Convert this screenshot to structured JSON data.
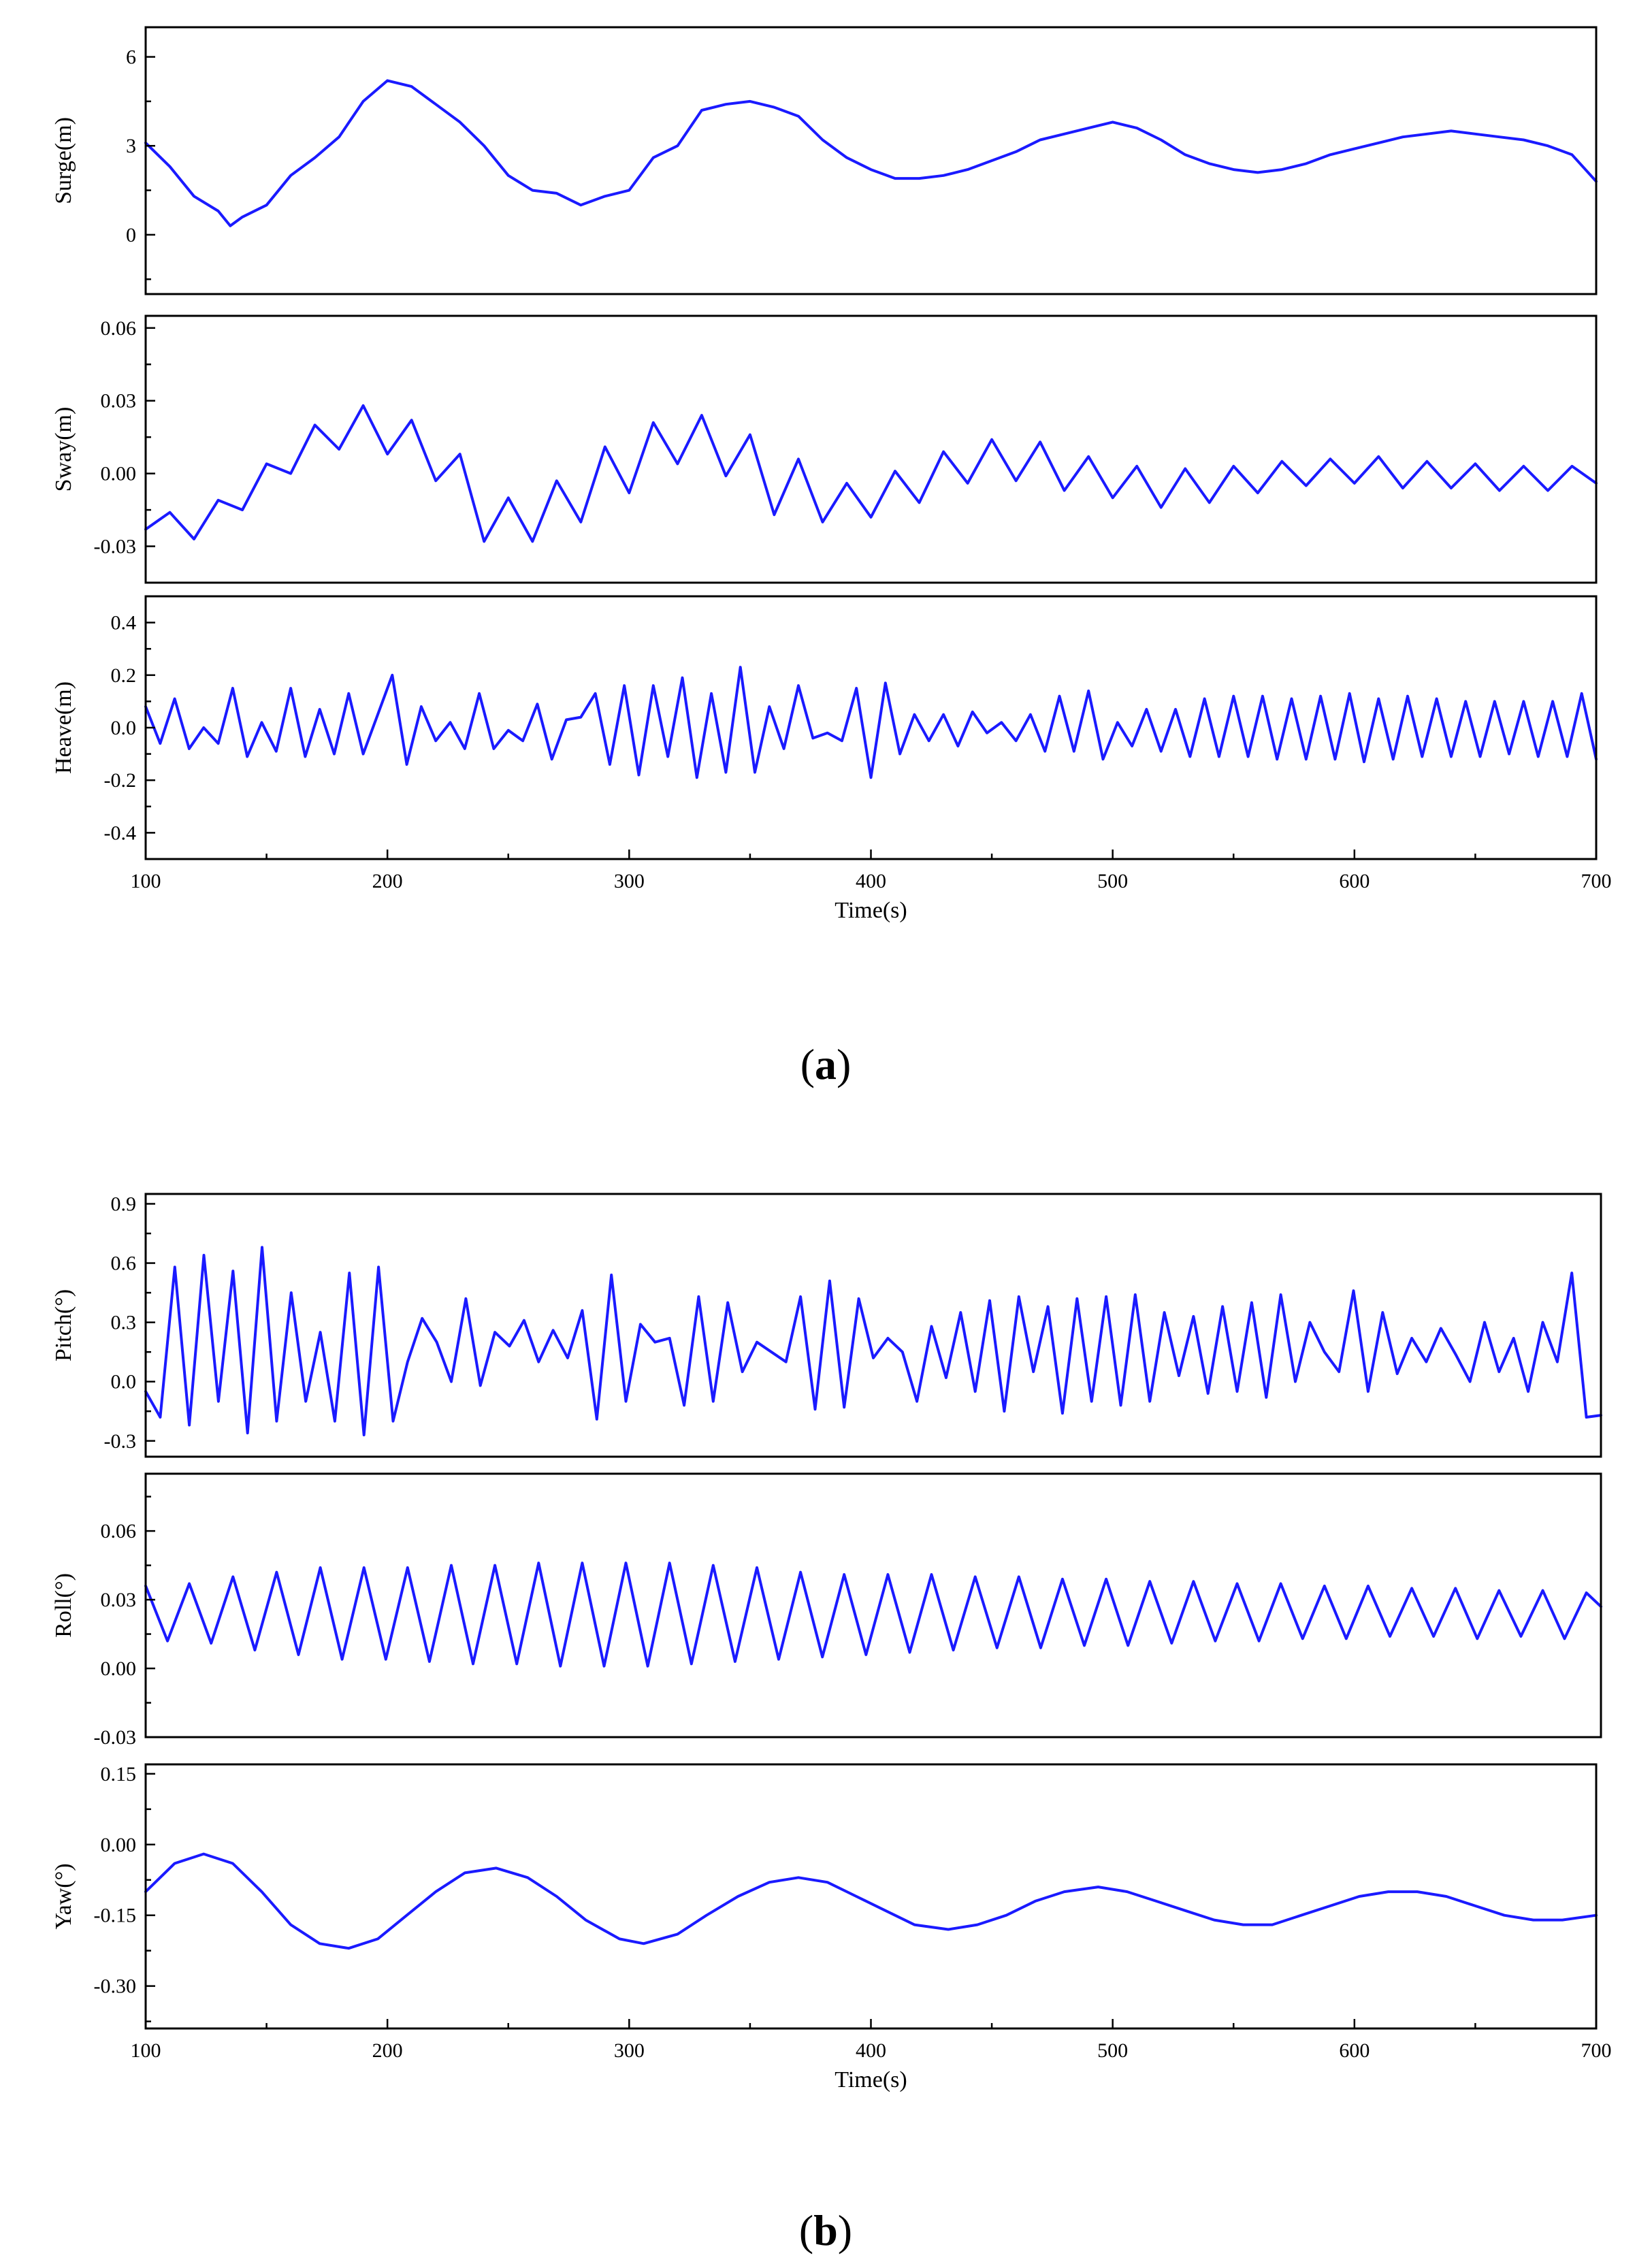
{
  "colors": {
    "line": "#1a1aff",
    "axis": "#000000"
  },
  "figure_labels": {
    "a": {
      "open": "(",
      "letter": "a",
      "close": ")"
    },
    "b": {
      "open": "(",
      "letter": "b",
      "close": ")"
    }
  },
  "chart_data": [
    {
      "type": "line",
      "panel": "a",
      "ylabel": "Surge(m)",
      "xlabel": "",
      "xlim": [
        100,
        700
      ],
      "ylim": [
        -2,
        7
      ],
      "yticks": [
        "6",
        "3",
        "0"
      ],
      "ytick_values": [
        6,
        3,
        0
      ],
      "xticks": [],
      "x": [
        100,
        110,
        120,
        130,
        135,
        140,
        150,
        160,
        170,
        180,
        190,
        200,
        210,
        220,
        230,
        240,
        250,
        260,
        270,
        280,
        290,
        300,
        310,
        320,
        330,
        340,
        350,
        360,
        370,
        380,
        390,
        400,
        410,
        420,
        430,
        440,
        450,
        460,
        470,
        480,
        490,
        500,
        510,
        520,
        530,
        540,
        550,
        560,
        570,
        580,
        590,
        600,
        610,
        620,
        630,
        640,
        650,
        660,
        670,
        680,
        690,
        700
      ],
      "values": [
        3.1,
        2.3,
        1.3,
        0.8,
        0.3,
        0.6,
        1.0,
        2.0,
        2.6,
        3.3,
        4.5,
        5.2,
        5.0,
        4.4,
        3.8,
        3.0,
        2.0,
        1.5,
        1.4,
        1.0,
        1.3,
        1.5,
        2.6,
        3.0,
        4.2,
        4.4,
        4.5,
        4.3,
        4.0,
        3.2,
        2.6,
        2.2,
        1.9,
        1.9,
        2.0,
        2.2,
        2.5,
        2.8,
        3.2,
        3.4,
        3.6,
        3.8,
        3.6,
        3.2,
        2.7,
        2.4,
        2.2,
        2.1,
        2.2,
        2.4,
        2.7,
        2.9,
        3.1,
        3.3,
        3.4,
        3.5,
        3.4,
        3.3,
        3.2,
        3.0,
        2.7,
        1.8
      ]
    },
    {
      "type": "line",
      "panel": "a",
      "ylabel": "Sway(m)",
      "xlabel": "",
      "xlim": [
        100,
        700
      ],
      "ylim": [
        -0.045,
        0.065
      ],
      "yticks": [
        "0.06",
        "0.03",
        "0.00",
        "-0.03"
      ],
      "ytick_values": [
        0.06,
        0.03,
        0.0,
        -0.03
      ],
      "xticks": [],
      "x": [
        100,
        110,
        120,
        130,
        140,
        150,
        160,
        170,
        180,
        190,
        200,
        210,
        220,
        230,
        240,
        250,
        260,
        270,
        280,
        290,
        300,
        310,
        320,
        330,
        340,
        350,
        360,
        370,
        380,
        390,
        400,
        410,
        420,
        430,
        440,
        450,
        460,
        470,
        480,
        490,
        500,
        510,
        520,
        530,
        540,
        550,
        560,
        570,
        580,
        590,
        600,
        610,
        620,
        630,
        640,
        650,
        660,
        670,
        680,
        690,
        700
      ],
      "values": [
        -0.023,
        -0.016,
        -0.027,
        -0.011,
        -0.015,
        0.004,
        0.0,
        0.02,
        0.01,
        0.028,
        0.008,
        0.022,
        -0.003,
        0.008,
        -0.028,
        -0.01,
        -0.028,
        -0.003,
        -0.02,
        0.011,
        -0.008,
        0.021,
        0.004,
        0.024,
        -0.001,
        0.016,
        -0.017,
        0.006,
        -0.02,
        -0.004,
        -0.018,
        0.001,
        -0.012,
        0.009,
        -0.004,
        0.014,
        -0.003,
        0.013,
        -0.007,
        0.007,
        -0.01,
        0.003,
        -0.014,
        0.002,
        -0.012,
        0.003,
        -0.008,
        0.005,
        -0.005,
        0.006,
        -0.004,
        0.007,
        -0.006,
        0.005,
        -0.006,
        0.004,
        -0.007,
        0.003,
        -0.007,
        0.003,
        -0.004
      ]
    },
    {
      "type": "line",
      "panel": "a",
      "ylabel": "Heave(m)",
      "xlabel": "Time(s)",
      "xlim": [
        100,
        700
      ],
      "ylim": [
        -0.5,
        0.5
      ],
      "yticks": [
        "0.4",
        "0.2",
        "0.0",
        "-0.2",
        "-0.4"
      ],
      "ytick_values": [
        0.4,
        0.2,
        0.0,
        -0.2,
        -0.4
      ],
      "xticks": [
        "100",
        "200",
        "300",
        "400",
        "500",
        "600",
        "700"
      ],
      "xtick_values": [
        100,
        200,
        300,
        400,
        500,
        600,
        700
      ],
      "x": [
        100,
        106,
        112,
        118,
        124,
        130,
        136,
        142,
        148,
        154,
        160,
        166,
        172,
        178,
        184,
        190,
        196,
        202,
        208,
        214,
        220,
        226,
        232,
        238,
        244,
        250,
        256,
        262,
        268,
        274,
        280,
        286,
        292,
        298,
        304,
        310,
        316,
        322,
        328,
        334,
        340,
        346,
        352,
        358,
        364,
        370,
        376,
        382,
        388,
        394,
        400,
        406,
        412,
        418,
        424,
        430,
        436,
        442,
        448,
        454,
        460,
        466,
        472,
        478,
        484,
        490,
        496,
        502,
        508,
        514,
        520,
        526,
        532,
        538,
        544,
        550,
        556,
        562,
        568,
        574,
        580,
        586,
        592,
        598,
        604,
        610,
        616,
        622,
        628,
        634,
        640,
        646,
        652,
        658,
        664,
        670,
        676,
        682,
        688,
        694,
        700
      ],
      "values": [
        0.08,
        -0.06,
        0.11,
        -0.08,
        0.0,
        -0.06,
        0.15,
        -0.11,
        0.02,
        -0.09,
        0.15,
        -0.11,
        0.07,
        -0.1,
        0.13,
        -0.1,
        0.05,
        0.2,
        -0.14,
        0.08,
        -0.05,
        0.02,
        -0.08,
        0.13,
        -0.08,
        -0.01,
        -0.05,
        0.09,
        -0.12,
        0.03,
        0.04,
        0.13,
        -0.14,
        0.16,
        -0.18,
        0.16,
        -0.11,
        0.19,
        -0.19,
        0.13,
        -0.17,
        0.23,
        -0.17,
        0.08,
        -0.08,
        0.16,
        -0.04,
        -0.02,
        -0.05,
        0.15,
        -0.19,
        0.17,
        -0.1,
        0.05,
        -0.05,
        0.05,
        -0.07,
        0.06,
        -0.02,
        0.02,
        -0.05,
        0.05,
        -0.09,
        0.12,
        -0.09,
        0.14,
        -0.12,
        0.02,
        -0.07,
        0.07,
        -0.09,
        0.07,
        -0.11,
        0.11,
        -0.11,
        0.12,
        -0.11,
        0.12,
        -0.12,
        0.11,
        -0.12,
        0.12,
        -0.12,
        0.13,
        -0.13,
        0.11,
        -0.12,
        0.12,
        -0.11,
        0.11,
        -0.11,
        0.1,
        -0.11,
        0.1,
        -0.1,
        0.1,
        -0.11,
        0.1,
        -0.11,
        0.13,
        -0.12
      ]
    },
    {
      "type": "line",
      "panel": "b",
      "ylabel": "Pitch(°)",
      "xlabel": "",
      "xlim": [
        100,
        700
      ],
      "ylim": [
        -0.38,
        0.95
      ],
      "yticks": [
        "0.9",
        "0.6",
        "0.3",
        "0.0",
        "-0.3"
      ],
      "ytick_values": [
        0.9,
        0.6,
        0.3,
        0.0,
        -0.3
      ],
      "xticks": [],
      "x": [
        100,
        106,
        112,
        118,
        124,
        130,
        136,
        142,
        148,
        154,
        160,
        166,
        172,
        178,
        184,
        190,
        196,
        202,
        208,
        214,
        220,
        226,
        232,
        238,
        244,
        250,
        256,
        262,
        268,
        274,
        280,
        286,
        292,
        298,
        304,
        310,
        316,
        322,
        328,
        334,
        340,
        346,
        352,
        358,
        364,
        370,
        376,
        382,
        388,
        394,
        400,
        406,
        412,
        418,
        424,
        430,
        436,
        442,
        448,
        454,
        460,
        466,
        472,
        478,
        484,
        490,
        496,
        502,
        508,
        514,
        520,
        526,
        532,
        538,
        544,
        550,
        556,
        562,
        568,
        574,
        580,
        586,
        592,
        598,
        604,
        610,
        616,
        622,
        628,
        634,
        640,
        646,
        652,
        658,
        664,
        670,
        676,
        682,
        688,
        694,
        700
      ],
      "values": [
        -0.05,
        -0.18,
        0.58,
        -0.22,
        0.64,
        -0.1,
        0.56,
        -0.26,
        0.68,
        -0.2,
        0.45,
        -0.1,
        0.25,
        -0.2,
        0.55,
        -0.27,
        0.58,
        -0.2,
        0.1,
        0.32,
        0.2,
        0.0,
        0.42,
        -0.02,
        0.25,
        0.18,
        0.31,
        0.1,
        0.26,
        0.12,
        0.36,
        -0.19,
        0.54,
        -0.1,
        0.29,
        0.2,
        0.22,
        -0.12,
        0.43,
        -0.1,
        0.4,
        0.05,
        0.2,
        0.15,
        0.1,
        0.43,
        -0.14,
        0.51,
        -0.13,
        0.42,
        0.12,
        0.22,
        0.15,
        -0.1,
        0.28,
        0.02,
        0.35,
        -0.05,
        0.41,
        -0.15,
        0.43,
        0.05,
        0.38,
        -0.16,
        0.42,
        -0.1,
        0.43,
        -0.12,
        0.44,
        -0.1,
        0.35,
        0.03,
        0.33,
        -0.06,
        0.38,
        -0.05,
        0.4,
        -0.08,
        0.44,
        0.0,
        0.3,
        0.15,
        0.05,
        0.46,
        -0.05,
        0.35,
        0.04,
        0.22,
        0.1,
        0.27,
        0.14,
        0.0,
        0.3,
        0.05,
        0.22,
        -0.05,
        0.3,
        0.1,
        0.55,
        -0.18,
        -0.17
      ]
    },
    {
      "type": "line",
      "panel": "b",
      "ylabel": "Roll(°)",
      "xlabel": "",
      "xlim": [
        100,
        700
      ],
      "ylim": [
        -0.03,
        0.085
      ],
      "yticks": [
        "0.06",
        "0.03",
        "0.00",
        "-0.03"
      ],
      "ytick_values": [
        0.06,
        0.03,
        0.0,
        -0.03
      ],
      "xticks": [],
      "x": [
        100,
        109,
        118,
        127,
        136,
        145,
        154,
        163,
        172,
        181,
        190,
        199,
        208,
        217,
        226,
        235,
        244,
        253,
        262,
        271,
        280,
        289,
        298,
        307,
        316,
        325,
        334,
        343,
        352,
        361,
        370,
        379,
        388,
        397,
        406,
        415,
        424,
        433,
        442,
        451,
        460,
        469,
        478,
        487,
        496,
        505,
        514,
        523,
        532,
        541,
        550,
        559,
        568,
        577,
        586,
        595,
        604,
        613,
        622,
        631,
        640,
        649,
        658,
        667,
        676,
        685,
        694,
        700
      ],
      "values": [
        0.036,
        0.012,
        0.037,
        0.011,
        0.04,
        0.008,
        0.042,
        0.006,
        0.044,
        0.004,
        0.044,
        0.004,
        0.044,
        0.003,
        0.045,
        0.002,
        0.045,
        0.002,
        0.046,
        0.001,
        0.046,
        0.001,
        0.046,
        0.001,
        0.046,
        0.002,
        0.045,
        0.003,
        0.044,
        0.004,
        0.042,
        0.005,
        0.041,
        0.006,
        0.041,
        0.007,
        0.041,
        0.008,
        0.04,
        0.009,
        0.04,
        0.009,
        0.039,
        0.01,
        0.039,
        0.01,
        0.038,
        0.011,
        0.038,
        0.012,
        0.037,
        0.012,
        0.037,
        0.013,
        0.036,
        0.013,
        0.036,
        0.014,
        0.035,
        0.014,
        0.035,
        0.013,
        0.034,
        0.014,
        0.034,
        0.013,
        0.033,
        0.027
      ]
    },
    {
      "type": "line",
      "panel": "b",
      "ylabel": "Yaw(°)",
      "xlabel": "Time(s)",
      "xlim": [
        100,
        700
      ],
      "ylim": [
        -0.39,
        0.17
      ],
      "yticks": [
        "0.15",
        "0.00",
        "-0.15",
        "-0.30"
      ],
      "ytick_values": [
        0.15,
        0.0,
        -0.15,
        -0.3
      ],
      "xticks": [
        "100",
        "200",
        "300",
        "400",
        "500",
        "600",
        "700"
      ],
      "xtick_values": [
        100,
        200,
        300,
        400,
        500,
        600,
        700
      ],
      "x": [
        100,
        112,
        124,
        136,
        148,
        160,
        172,
        184,
        196,
        208,
        220,
        232,
        245,
        258,
        270,
        282,
        296,
        306,
        320,
        332,
        345,
        358,
        370,
        382,
        394,
        406,
        418,
        432,
        444,
        456,
        468,
        480,
        494,
        506,
        518,
        530,
        542,
        554,
        566,
        578,
        590,
        602,
        614,
        626,
        638,
        650,
        662,
        674,
        686,
        700
      ],
      "values": [
        -0.1,
        -0.04,
        -0.02,
        -0.04,
        -0.1,
        -0.17,
        -0.21,
        -0.22,
        -0.2,
        -0.15,
        -0.1,
        -0.06,
        -0.05,
        -0.07,
        -0.11,
        -0.16,
        -0.2,
        -0.21,
        -0.19,
        -0.15,
        -0.11,
        -0.08,
        -0.07,
        -0.08,
        -0.11,
        -0.14,
        -0.17,
        -0.18,
        -0.17,
        -0.15,
        -0.12,
        -0.1,
        -0.09,
        -0.1,
        -0.12,
        -0.14,
        -0.16,
        -0.17,
        -0.17,
        -0.15,
        -0.13,
        -0.11,
        -0.1,
        -0.1,
        -0.11,
        -0.13,
        -0.15,
        -0.16,
        -0.16,
        -0.15
      ]
    }
  ]
}
